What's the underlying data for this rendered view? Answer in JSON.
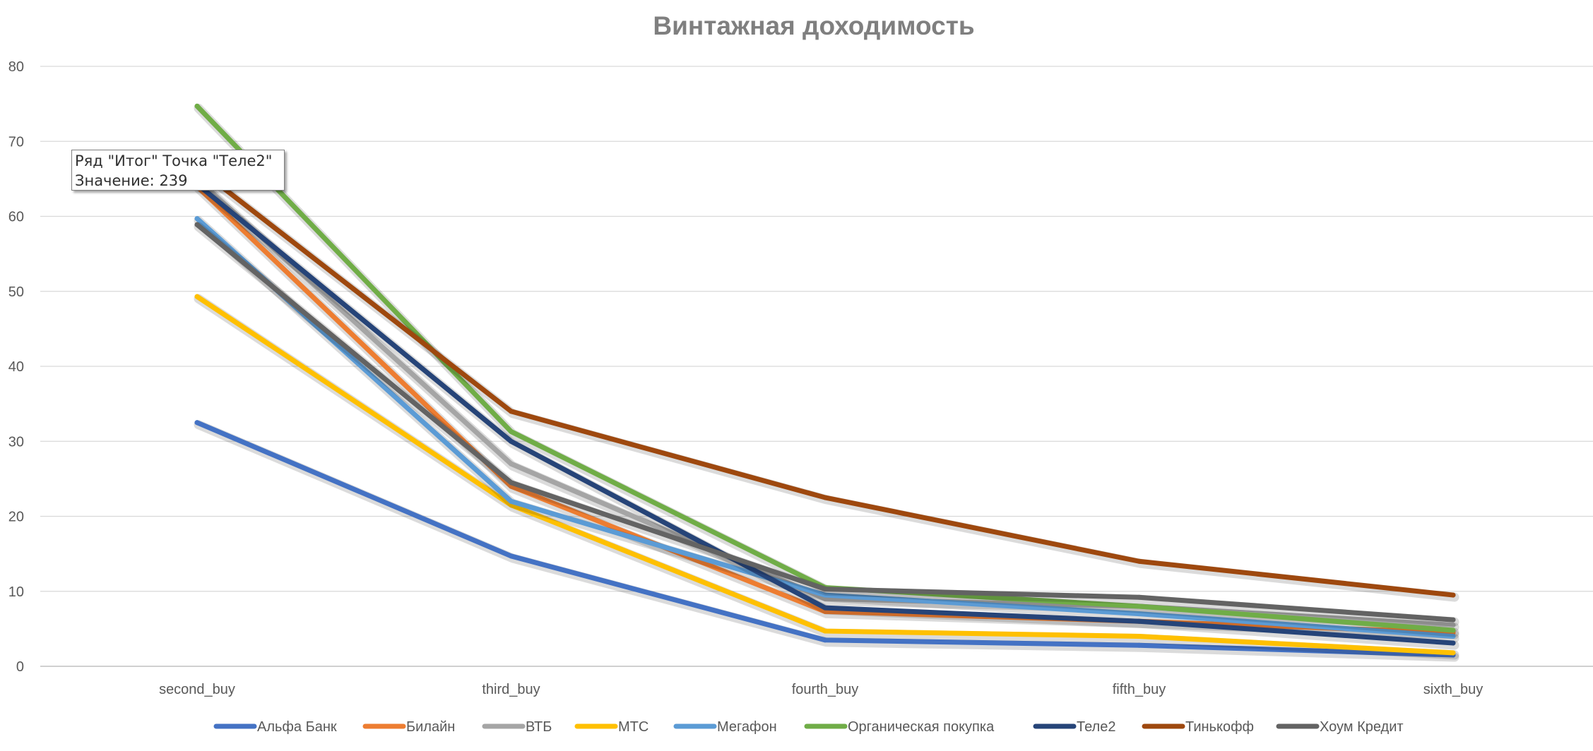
{
  "chart_data": {
    "type": "line",
    "title": "Винтажная доходимость",
    "xlabel": "",
    "ylabel": "",
    "categories": [
      "second_buy",
      "third_buy",
      "fourth_buy",
      "fifth_buy",
      "sixth_buy"
    ],
    "ylim": [
      0,
      80
    ],
    "yticks": [
      0,
      10,
      20,
      30,
      40,
      50,
      60,
      70,
      80
    ],
    "grid": true,
    "legend_position": "bottom",
    "series": [
      {
        "name": "Альфа Банк",
        "color": "#4472c4",
        "values": [
          32.5,
          14.7,
          3.5,
          2.8,
          1.5
        ]
      },
      {
        "name": "Билайн",
        "color": "#ed7d31",
        "values": [
          64.0,
          24.0,
          7.3,
          6.0,
          4.5
        ]
      },
      {
        "name": "ВТБ",
        "color": "#a5a5a5",
        "values": [
          65.0,
          27.0,
          9.0,
          8.0,
          5.5
        ]
      },
      {
        "name": "МТС",
        "color": "#ffc000",
        "values": [
          49.3,
          21.5,
          4.7,
          4.0,
          1.8
        ]
      },
      {
        "name": "Мегафон",
        "color": "#5b9bd5",
        "values": [
          59.7,
          22.0,
          9.5,
          7.0,
          4.0
        ]
      },
      {
        "name": "Органическая покупка",
        "color": "#70ad47",
        "values": [
          74.7,
          31.3,
          10.5,
          8.0,
          4.8
        ]
      },
      {
        "name": "Теле2",
        "color": "#264478",
        "values": [
          64.3,
          30.0,
          7.8,
          6.0,
          3.1
        ]
      },
      {
        "name": "Тинькофф",
        "color": "#9e480e",
        "values": [
          66.5,
          34.0,
          22.5,
          14.0,
          9.5
        ]
      },
      {
        "name": "Хоум Кредит",
        "color": "#636363",
        "values": [
          58.9,
          24.5,
          10.3,
          9.2,
          6.2
        ]
      }
    ]
  },
  "tooltip": {
    "line1": "Ряд \"Итог\" Точка \"Теле2\"",
    "line2": "Значение: 239"
  }
}
